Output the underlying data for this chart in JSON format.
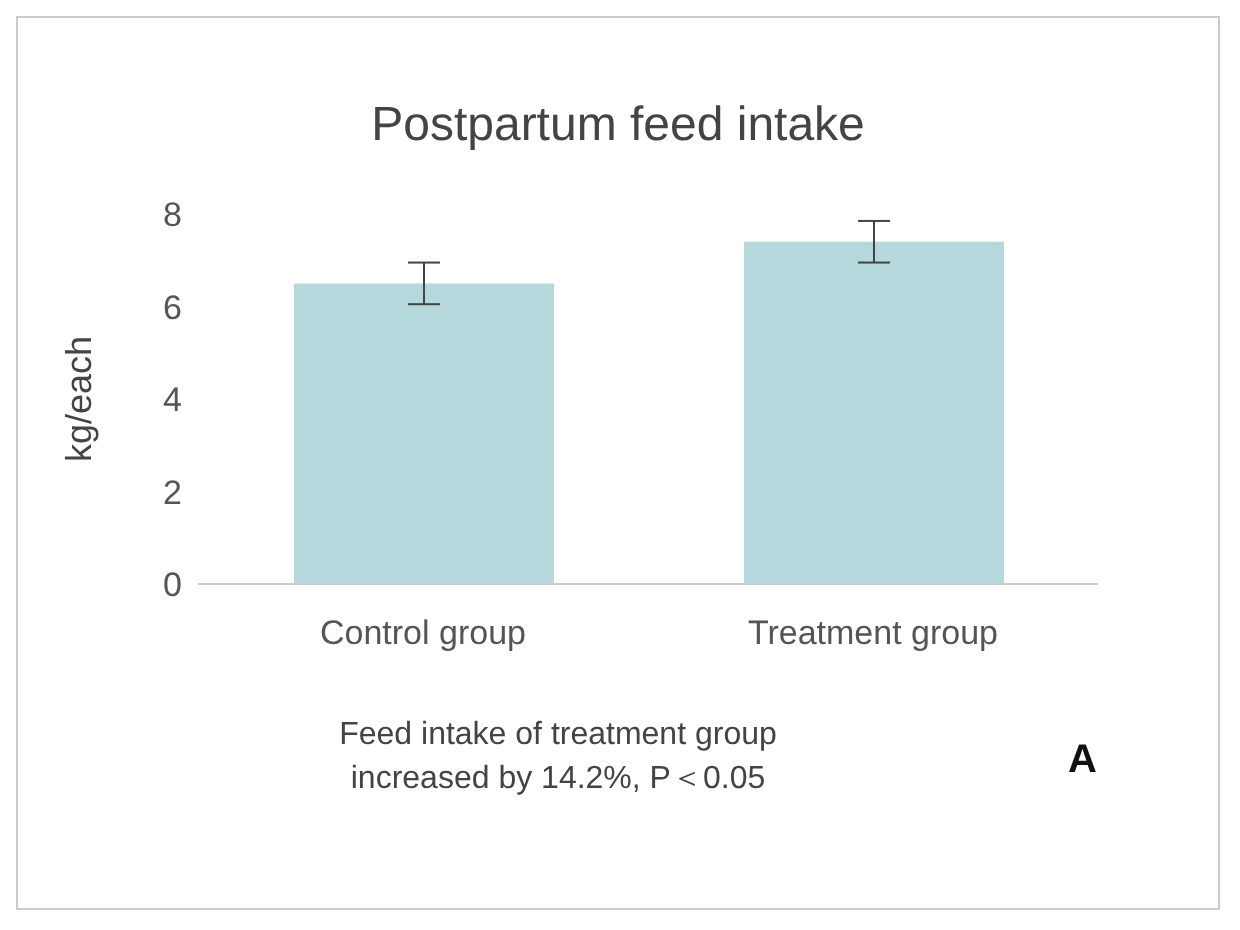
{
  "chart_data": {
    "type": "bar",
    "title": "Postpartum feed intake",
    "ylabel": "kg/each",
    "categories": [
      "Control group",
      "Treatment group"
    ],
    "values": [
      6.5,
      7.4
    ],
    "errors": [
      0.45,
      0.45
    ],
    "color": "#b4d8dc",
    "ylim": [
      0,
      8
    ],
    "yticks": [
      0,
      2,
      4,
      6,
      8
    ],
    "grid": false,
    "annotations": [
      "Feed intake of treatment group increased by 14.2%, P＜0.05",
      "A"
    ]
  }
}
